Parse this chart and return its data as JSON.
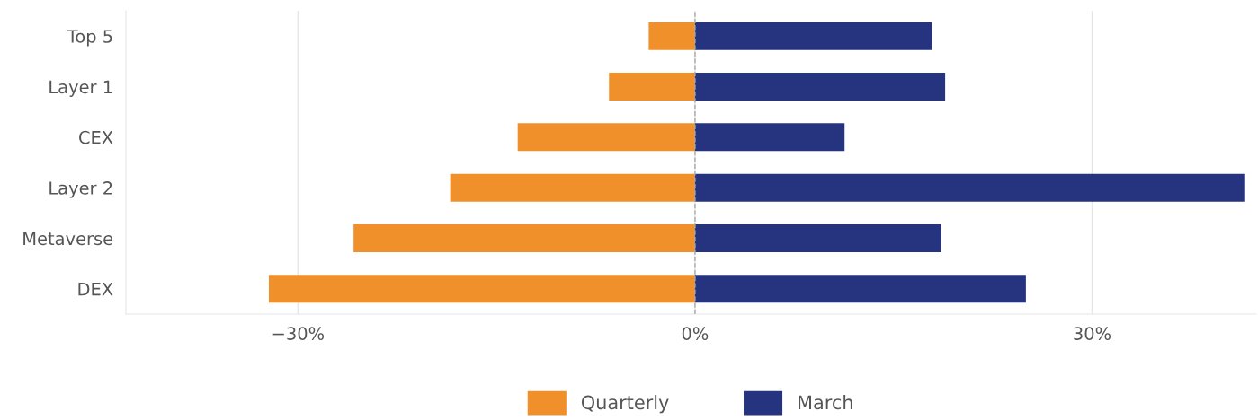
{
  "chart_data": {
    "type": "bar",
    "orientation": "horizontal",
    "stacked": true,
    "categories": [
      "Top 5",
      "Layer 1",
      "CEX",
      "Layer 2",
      "Metaverse",
      "DEX"
    ],
    "series": [
      {
        "name": "Quarterly",
        "color": "#f0902a",
        "values": [
          -3.5,
          -6.5,
          -13.4,
          -18.5,
          -25.8,
          -32.2
        ]
      },
      {
        "name": "March",
        "color": "#263480",
        "values": [
          17.9,
          18.9,
          11.3,
          41.5,
          18.6,
          25.0
        ]
      }
    ],
    "xlim": [
      -43,
      42.4
    ],
    "xticks": [
      {
        "value": -30,
        "label": "−30%"
      },
      {
        "value": 0,
        "label": "0%"
      },
      {
        "value": 30,
        "label": "30%"
      }
    ],
    "ref_lines": [
      {
        "axis": "x",
        "value": 0,
        "color": "#aaaaaa",
        "line_style": "dashed"
      }
    ],
    "grid": "x",
    "legend": "bottom"
  }
}
